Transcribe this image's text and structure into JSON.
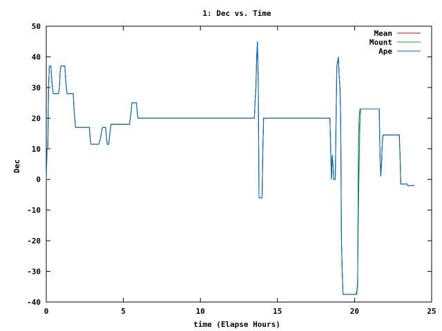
{
  "chart_data": {
    "type": "line",
    "title": "1: Dec vs. Time",
    "xlabel": "time (Elapse Hours)",
    "ylabel": "Dec",
    "xlim": [
      0,
      25
    ],
    "ylim": [
      -40,
      50
    ],
    "xticks": [
      0,
      5,
      10,
      15,
      20,
      25
    ],
    "yticks": [
      -40,
      -30,
      -20,
      -10,
      0,
      10,
      20,
      30,
      40,
      50
    ],
    "grid": false,
    "legend_position": "top-right",
    "series": [
      {
        "name": "Mean",
        "color": "#cc0000",
        "points": [
          [
            0,
            0
          ],
          [
            0.05,
            10
          ],
          [
            0.1,
            10
          ],
          [
            0.15,
            30
          ],
          [
            0.2,
            37
          ],
          [
            0.3,
            37
          ],
          [
            0.35,
            33
          ],
          [
            0.4,
            30
          ],
          [
            0.45,
            28
          ],
          [
            0.8,
            28
          ],
          [
            0.85,
            30
          ],
          [
            0.9,
            35
          ],
          [
            0.95,
            37
          ],
          [
            1.2,
            37
          ],
          [
            1.25,
            33
          ],
          [
            1.3,
            30
          ],
          [
            1.35,
            28
          ],
          [
            1.75,
            28
          ],
          [
            1.8,
            23
          ],
          [
            1.85,
            20
          ],
          [
            1.9,
            17
          ],
          [
            2.8,
            17
          ],
          [
            2.85,
            13
          ],
          [
            2.9,
            11.5
          ],
          [
            3.4,
            11.5
          ],
          [
            3.5,
            13
          ],
          [
            3.6,
            16
          ],
          [
            3.65,
            17
          ],
          [
            3.85,
            17
          ],
          [
            3.9,
            14
          ],
          [
            3.95,
            11.5
          ],
          [
            4.05,
            11.5
          ],
          [
            4.15,
            16
          ],
          [
            4.2,
            18
          ],
          [
            5.4,
            18
          ],
          [
            5.5,
            22
          ],
          [
            5.55,
            25
          ],
          [
            5.85,
            25
          ],
          [
            5.9,
            22
          ],
          [
            5.95,
            20
          ],
          [
            13.5,
            20
          ],
          [
            13.55,
            26
          ],
          [
            13.6,
            30
          ],
          [
            13.65,
            40
          ],
          [
            13.7,
            45
          ],
          [
            13.75,
            33
          ],
          [
            13.8,
            -6
          ],
          [
            14.0,
            -6
          ],
          [
            14.05,
            10
          ],
          [
            14.1,
            20
          ],
          [
            18.4,
            20
          ],
          [
            18.45,
            10
          ],
          [
            18.5,
            0
          ],
          [
            18.55,
            8
          ],
          [
            18.6,
            5
          ],
          [
            18.65,
            0
          ],
          [
            18.75,
            0
          ],
          [
            18.8,
            20
          ],
          [
            18.85,
            37
          ],
          [
            18.95,
            40
          ],
          [
            19.0,
            34
          ],
          [
            19.05,
            30
          ],
          [
            19.1,
            20
          ],
          [
            19.15,
            -20
          ],
          [
            19.2,
            -30
          ],
          [
            19.25,
            -37.5
          ],
          [
            20.1,
            -37.5
          ],
          [
            20.2,
            -35
          ],
          [
            20.25,
            10
          ],
          [
            20.3,
            20
          ],
          [
            20.35,
            23
          ],
          [
            21.6,
            23
          ],
          [
            21.65,
            8
          ],
          [
            21.7,
            1
          ],
          [
            21.75,
            5
          ],
          [
            21.8,
            12
          ],
          [
            21.85,
            14.5
          ],
          [
            22.9,
            14.5
          ],
          [
            22.95,
            8
          ],
          [
            23.0,
            -1.5
          ],
          [
            23.4,
            -1.5
          ],
          [
            23.45,
            -2
          ],
          [
            23.9,
            -2
          ]
        ]
      },
      {
        "name": "Mount",
        "color": "#00aa00",
        "points": [
          [
            0,
            0
          ],
          [
            0.05,
            10
          ],
          [
            0.1,
            10
          ],
          [
            0.15,
            30
          ],
          [
            0.2,
            37
          ],
          [
            0.3,
            37
          ],
          [
            0.35,
            33
          ],
          [
            0.4,
            30
          ],
          [
            0.45,
            28
          ],
          [
            0.8,
            28
          ],
          [
            0.85,
            30
          ],
          [
            0.9,
            35
          ],
          [
            0.95,
            37
          ],
          [
            1.2,
            37
          ],
          [
            1.25,
            33
          ],
          [
            1.3,
            30
          ],
          [
            1.35,
            28
          ],
          [
            1.75,
            28
          ],
          [
            1.8,
            23
          ],
          [
            1.85,
            20
          ],
          [
            1.9,
            17
          ],
          [
            2.8,
            17
          ],
          [
            2.85,
            13
          ],
          [
            2.9,
            11.5
          ],
          [
            3.4,
            11.5
          ],
          [
            3.5,
            13
          ],
          [
            3.6,
            16
          ],
          [
            3.65,
            17
          ],
          [
            3.85,
            17
          ],
          [
            3.9,
            14
          ],
          [
            3.95,
            11.5
          ],
          [
            4.05,
            11.5
          ],
          [
            4.15,
            16
          ],
          [
            4.2,
            18
          ],
          [
            5.4,
            18
          ],
          [
            5.5,
            22
          ],
          [
            5.55,
            25
          ],
          [
            5.85,
            25
          ],
          [
            5.9,
            22
          ],
          [
            5.95,
            20
          ],
          [
            13.5,
            20
          ],
          [
            13.55,
            26
          ],
          [
            13.6,
            30
          ],
          [
            13.65,
            40
          ],
          [
            13.7,
            45
          ],
          [
            13.75,
            33
          ],
          [
            13.8,
            -6
          ],
          [
            14.0,
            -6
          ],
          [
            14.05,
            10
          ],
          [
            14.1,
            20
          ],
          [
            18.4,
            20
          ],
          [
            18.45,
            10
          ],
          [
            18.5,
            0
          ],
          [
            18.55,
            8
          ],
          [
            18.6,
            5
          ],
          [
            18.65,
            0
          ],
          [
            18.75,
            0
          ],
          [
            18.8,
            20
          ],
          [
            18.85,
            37
          ],
          [
            18.95,
            40
          ],
          [
            19.0,
            34
          ],
          [
            19.05,
            30
          ],
          [
            19.1,
            20
          ],
          [
            19.15,
            -20
          ],
          [
            19.2,
            -30
          ],
          [
            19.25,
            -37.5
          ],
          [
            20.15,
            -37.5
          ],
          [
            20.2,
            -32
          ],
          [
            20.25,
            -10
          ],
          [
            20.3,
            5
          ],
          [
            20.35,
            18
          ],
          [
            20.4,
            23
          ],
          [
            21.6,
            23
          ],
          [
            21.65,
            8
          ],
          [
            21.7,
            1
          ],
          [
            21.75,
            5
          ],
          [
            21.8,
            12
          ],
          [
            21.85,
            14.5
          ],
          [
            22.9,
            14.5
          ],
          [
            22.95,
            8
          ],
          [
            23.0,
            -1.5
          ],
          [
            23.4,
            -1.5
          ],
          [
            23.45,
            -2
          ],
          [
            23.9,
            -2
          ]
        ]
      },
      {
        "name": "Ape",
        "color": "#0066cc",
        "points": [
          [
            0,
            0
          ],
          [
            0.05,
            10
          ],
          [
            0.1,
            10
          ],
          [
            0.15,
            30
          ],
          [
            0.2,
            37
          ],
          [
            0.3,
            37
          ],
          [
            0.35,
            33
          ],
          [
            0.4,
            30
          ],
          [
            0.45,
            28
          ],
          [
            0.8,
            28
          ],
          [
            0.85,
            30
          ],
          [
            0.9,
            35
          ],
          [
            0.95,
            37
          ],
          [
            1.2,
            37
          ],
          [
            1.25,
            33
          ],
          [
            1.3,
            30
          ],
          [
            1.35,
            28
          ],
          [
            1.75,
            28
          ],
          [
            1.8,
            23
          ],
          [
            1.85,
            20
          ],
          [
            1.9,
            17
          ],
          [
            2.8,
            17
          ],
          [
            2.85,
            13
          ],
          [
            2.9,
            11.5
          ],
          [
            3.4,
            11.5
          ],
          [
            3.5,
            13
          ],
          [
            3.6,
            16
          ],
          [
            3.65,
            17
          ],
          [
            3.85,
            17
          ],
          [
            3.9,
            14
          ],
          [
            3.95,
            11.5
          ],
          [
            4.05,
            11.5
          ],
          [
            4.15,
            16
          ],
          [
            4.2,
            18
          ],
          [
            5.4,
            18
          ],
          [
            5.5,
            22
          ],
          [
            5.55,
            25
          ],
          [
            5.85,
            25
          ],
          [
            5.9,
            22
          ],
          [
            5.95,
            20
          ],
          [
            13.5,
            20
          ],
          [
            13.55,
            26
          ],
          [
            13.6,
            30
          ],
          [
            13.65,
            40
          ],
          [
            13.7,
            45
          ],
          [
            13.75,
            33
          ],
          [
            13.8,
            -6
          ],
          [
            14.0,
            -6
          ],
          [
            14.05,
            10
          ],
          [
            14.1,
            20
          ],
          [
            18.4,
            20
          ],
          [
            18.45,
            10
          ],
          [
            18.5,
            0
          ],
          [
            18.55,
            8
          ],
          [
            18.6,
            5
          ],
          [
            18.65,
            0
          ],
          [
            18.75,
            0
          ],
          [
            18.8,
            20
          ],
          [
            18.85,
            37
          ],
          [
            18.95,
            40
          ],
          [
            19.0,
            34
          ],
          [
            19.05,
            30
          ],
          [
            19.1,
            20
          ],
          [
            19.15,
            -20
          ],
          [
            19.2,
            -30
          ],
          [
            19.25,
            -37.5
          ],
          [
            20.1,
            -37.5
          ],
          [
            20.2,
            -35
          ],
          [
            20.25,
            10
          ],
          [
            20.3,
            20
          ],
          [
            20.35,
            23
          ],
          [
            21.6,
            23
          ],
          [
            21.65,
            8
          ],
          [
            21.7,
            1
          ],
          [
            21.75,
            5
          ],
          [
            21.8,
            12
          ],
          [
            21.85,
            14.5
          ],
          [
            22.9,
            14.5
          ],
          [
            22.95,
            8
          ],
          [
            23.0,
            -1.5
          ],
          [
            23.4,
            -1.5
          ],
          [
            23.45,
            -2
          ],
          [
            23.9,
            -2
          ]
        ]
      }
    ]
  }
}
